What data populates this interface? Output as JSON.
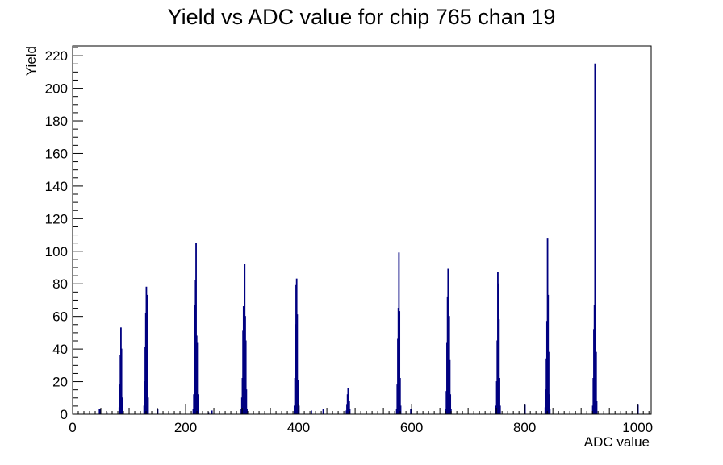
{
  "chart_data": {
    "type": "histogram",
    "title": "Yield vs ADC value for chip 765 chan 19",
    "xlabel": "ADC value",
    "ylabel": "Yield",
    "xlim": [
      0,
      1024
    ],
    "ylim": [
      0,
      226
    ],
    "x_ticks": [
      0,
      200,
      400,
      600,
      800,
      1000
    ],
    "y_ticks": [
      0,
      20,
      40,
      60,
      80,
      100,
      120,
      140,
      160,
      180,
      200,
      220
    ],
    "grid": false,
    "legend": "none",
    "line_color": "#000080",
    "bin_width": 1,
    "series": [
      {
        "values": [
          [
            47,
            3
          ],
          [
            48,
            3
          ],
          [
            60,
            1
          ],
          [
            82,
            4
          ],
          [
            83,
            18
          ],
          [
            84,
            36
          ],
          [
            85,
            53
          ],
          [
            86,
            40
          ],
          [
            87,
            10
          ],
          [
            88,
            3
          ],
          [
            126,
            5
          ],
          [
            127,
            20
          ],
          [
            128,
            41
          ],
          [
            129,
            62
          ],
          [
            130,
            78
          ],
          [
            131,
            73
          ],
          [
            132,
            44
          ],
          [
            133,
            10
          ],
          [
            150,
            3
          ],
          [
            213,
            3
          ],
          [
            214,
            12
          ],
          [
            215,
            38
          ],
          [
            216,
            67
          ],
          [
            217,
            82
          ],
          [
            218,
            105
          ],
          [
            219,
            48
          ],
          [
            220,
            44
          ],
          [
            221,
            12
          ],
          [
            222,
            3
          ],
          [
            240,
            1
          ],
          [
            246,
            2
          ],
          [
            298,
            3
          ],
          [
            299,
            10
          ],
          [
            300,
            22
          ],
          [
            301,
            51
          ],
          [
            302,
            66
          ],
          [
            303,
            49
          ],
          [
            304,
            92
          ],
          [
            305,
            60
          ],
          [
            306,
            45
          ],
          [
            307,
            15
          ],
          [
            308,
            3
          ],
          [
            392,
            5
          ],
          [
            393,
            22
          ],
          [
            394,
            55
          ],
          [
            395,
            79
          ],
          [
            396,
            83
          ],
          [
            397,
            61
          ],
          [
            398,
            21
          ],
          [
            399,
            21
          ],
          [
            400,
            5
          ],
          [
            422,
            2
          ],
          [
            443,
            3
          ],
          [
            484,
            2
          ],
          [
            485,
            6
          ],
          [
            486,
            12
          ],
          [
            487,
            16
          ],
          [
            488,
            14
          ],
          [
            489,
            8
          ],
          [
            490,
            3
          ],
          [
            573,
            3
          ],
          [
            574,
            18
          ],
          [
            575,
            46
          ],
          [
            576,
            65
          ],
          [
            577,
            99
          ],
          [
            578,
            63
          ],
          [
            579,
            22
          ],
          [
            580,
            5
          ],
          [
            598,
            3
          ],
          [
            660,
            3
          ],
          [
            661,
            14
          ],
          [
            662,
            44
          ],
          [
            663,
            72
          ],
          [
            664,
            89
          ],
          [
            665,
            88
          ],
          [
            666,
            60
          ],
          [
            667,
            33
          ],
          [
            668,
            12
          ],
          [
            669,
            3
          ],
          [
            749,
            5
          ],
          [
            750,
            20
          ],
          [
            751,
            45
          ],
          [
            752,
            87
          ],
          [
            753,
            80
          ],
          [
            754,
            58
          ],
          [
            755,
            22
          ],
          [
            756,
            5
          ],
          [
            800,
            6
          ],
          [
            836,
            4
          ],
          [
            837,
            15
          ],
          [
            838,
            34
          ],
          [
            839,
            57
          ],
          [
            840,
            108
          ],
          [
            841,
            73
          ],
          [
            842,
            38
          ],
          [
            843,
            12
          ],
          [
            844,
            3
          ],
          [
            920,
            5
          ],
          [
            921,
            22
          ],
          [
            922,
            52
          ],
          [
            923,
            67
          ],
          [
            924,
            215
          ],
          [
            925,
            142
          ],
          [
            926,
            38
          ],
          [
            927,
            8
          ],
          [
            1000,
            6
          ]
        ]
      }
    ]
  }
}
